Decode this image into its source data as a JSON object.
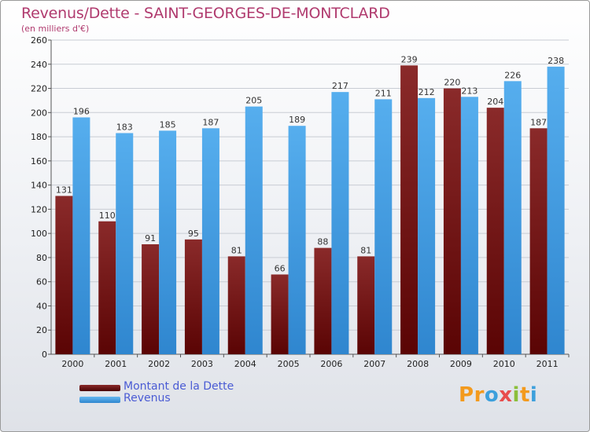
{
  "title": "Revenus/Dette - SAINT-GEORGES-DE-MONTCLARD",
  "subtitle": "(en milliers d'€)",
  "colors": {
    "dette": "#7a1c1c",
    "revenus": "#4b9fe3",
    "title": "#b03a6e",
    "legend_text": "#4a5bd4"
  },
  "legend": [
    {
      "label": "Montant de la Dette",
      "series": "dette"
    },
    {
      "label": "Revenus",
      "series": "revenus"
    }
  ],
  "logo": {
    "letters": [
      "P",
      "r",
      "o",
      "x",
      "i",
      "t",
      "i"
    ],
    "colors": [
      "#f39a1d",
      "#f39a1d",
      "#3da0dc",
      "#e84d4d",
      "#8bbf3b",
      "#f39a1d",
      "#3da0dc"
    ]
  },
  "chart_data": {
    "type": "bar",
    "categories": [
      "2000",
      "2001",
      "2002",
      "2003",
      "2004",
      "2005",
      "2006",
      "2007",
      "2008",
      "2009",
      "2010",
      "2011"
    ],
    "series": [
      {
        "name": "Montant de la Dette",
        "key": "dette",
        "values": [
          131,
          110,
          91,
          95,
          81,
          66,
          88,
          81,
          239,
          220,
          204,
          187
        ]
      },
      {
        "name": "Revenus",
        "key": "revenus",
        "values": [
          196,
          183,
          185,
          187,
          205,
          189,
          217,
          211,
          212,
          213,
          226,
          238
        ]
      }
    ],
    "ylim": [
      0,
      260
    ],
    "yticks": [
      0,
      20,
      40,
      60,
      80,
      100,
      120,
      140,
      160,
      180,
      200,
      220,
      240,
      260
    ],
    "grid": true,
    "legend_position": "bottom-left"
  }
}
